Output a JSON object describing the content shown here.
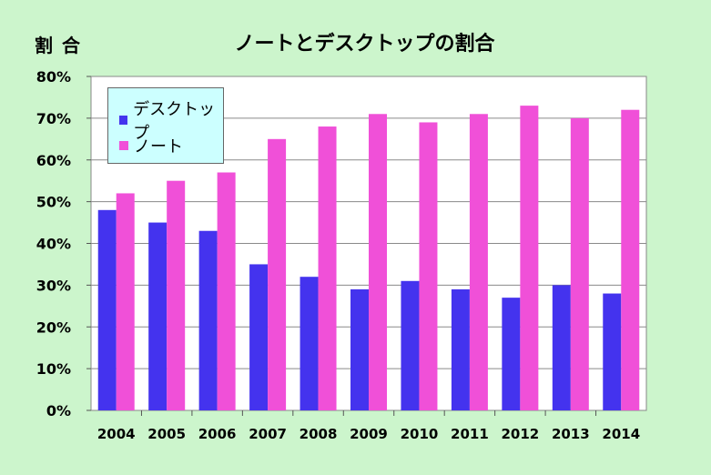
{
  "chart_data": {
    "type": "bar",
    "title": "ノートとデスクトップの割合",
    "ylabel": "割合",
    "xlabel": "",
    "categories": [
      "2004",
      "2005",
      "2006",
      "2007",
      "2008",
      "2009",
      "2010",
      "2011",
      "2012",
      "2013",
      "2014"
    ],
    "series": [
      {
        "name": "デスクトップ",
        "color": "#4433ee",
        "values": [
          48,
          45,
          43,
          35,
          32,
          29,
          31,
          29,
          27,
          30,
          28
        ]
      },
      {
        "name": "ノート",
        "color": "#f050d8",
        "values": [
          52,
          55,
          57,
          65,
          68,
          71,
          69,
          71,
          73,
          70,
          72
        ]
      }
    ],
    "ylim": [
      0,
      80
    ],
    "yticks": [
      0,
      10,
      20,
      30,
      40,
      50,
      60,
      70,
      80
    ],
    "ytick_labels": [
      "0%",
      "10%",
      "20%",
      "30%",
      "40%",
      "50%",
      "60%",
      "70%",
      "80%"
    ],
    "grid": true,
    "legend_position": "top-left",
    "background_color": "#ccf5cc",
    "plot_background_color": "#ffffff"
  }
}
